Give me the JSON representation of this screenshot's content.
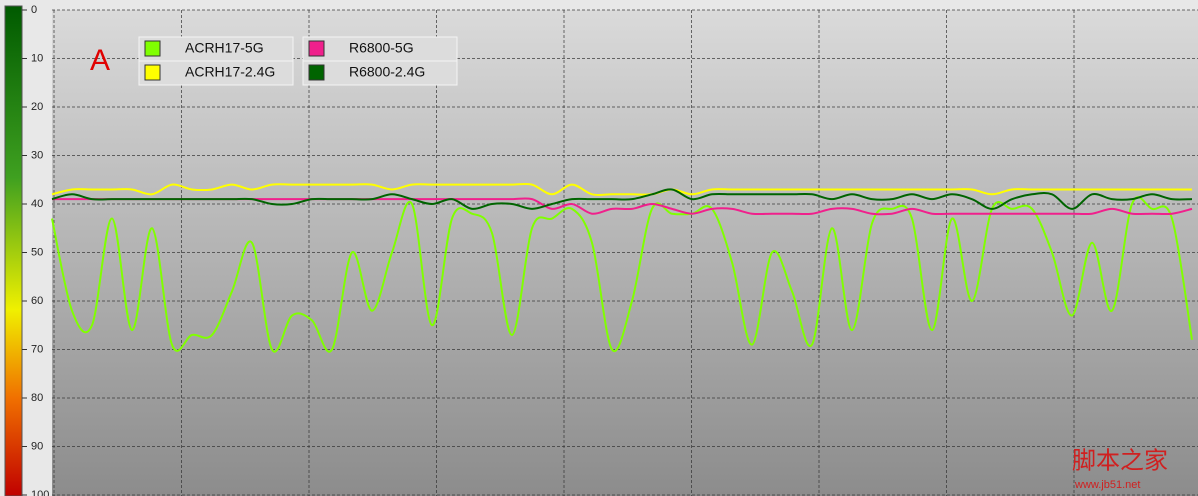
{
  "chart_data": {
    "type": "line",
    "annotation": "A",
    "watermark": [
      "脚本之家",
      "www.jb51.net"
    ],
    "ylim": [
      0,
      100
    ],
    "y_inverted": true,
    "yticks": [
      0,
      10,
      20,
      30,
      40,
      50,
      60,
      70,
      80,
      90,
      100
    ],
    "grid": true,
    "legend": "top-left",
    "categories": [
      null,
      null,
      null,
      null,
      null,
      null,
      null,
      null,
      null,
      null,
      null,
      null,
      null,
      null,
      null,
      null,
      null,
      null,
      null,
      null,
      null,
      null,
      null,
      null,
      null,
      null,
      null,
      null,
      null,
      null,
      null,
      null,
      null,
      null,
      null,
      null,
      null,
      null,
      null,
      null,
      null,
      null,
      null,
      null,
      null,
      null,
      null,
      null,
      null,
      null,
      null,
      null,
      null,
      null,
      null,
      null,
      null,
      null
    ],
    "series": [
      {
        "name": "ACRH17-5G",
        "color": "#80ff00",
        "values": [
          43,
          62,
          65,
          43,
          66,
          45,
          69,
          67,
          67,
          58,
          48,
          70,
          63,
          64,
          70,
          50,
          62,
          50,
          40,
          65,
          43,
          42,
          46,
          67,
          45,
          43,
          41,
          48,
          70,
          60,
          41,
          42,
          42,
          41,
          52,
          69,
          50,
          58,
          69,
          45,
          66,
          44,
          41,
          43,
          66,
          43,
          60,
          41,
          41,
          41,
          50,
          63,
          48,
          62,
          40,
          41,
          43,
          68
        ]
      },
      {
        "name": "ACRH17-2.4G",
        "color": "#ffff00",
        "values": [
          38,
          37,
          37,
          37,
          37,
          38,
          36,
          37,
          37,
          36,
          37,
          36,
          36,
          36,
          36,
          36,
          36,
          37,
          36,
          36,
          36,
          36,
          36,
          36,
          36,
          38,
          36,
          38,
          38,
          38,
          38,
          37,
          38,
          37,
          37,
          37,
          37,
          37,
          37,
          37,
          37,
          37,
          37,
          37,
          37,
          37,
          37,
          38,
          37,
          37,
          37,
          37,
          37,
          37,
          37,
          37,
          37,
          37
        ]
      },
      {
        "name": "R6800-5G",
        "color": "#f0208c",
        "values": [
          39,
          39,
          39,
          39,
          39,
          39,
          39,
          39,
          39,
          39,
          39,
          39,
          39,
          39,
          39,
          39,
          39,
          39,
          39,
          39,
          39,
          39,
          39,
          39,
          39,
          41,
          40,
          42,
          41,
          41,
          40,
          41,
          42,
          41,
          41,
          42,
          42,
          42,
          42,
          41,
          41,
          42,
          42,
          41,
          42,
          42,
          42,
          42,
          42,
          42,
          42,
          42,
          42,
          41,
          42,
          42,
          42,
          41
        ]
      },
      {
        "name": "R6800-2.4G",
        "color": "#006400",
        "values": [
          39,
          38,
          39,
          39,
          39,
          39,
          39,
          39,
          39,
          39,
          39,
          40,
          40,
          39,
          39,
          39,
          39,
          38,
          39,
          40,
          39,
          41,
          40,
          40,
          41,
          40,
          39,
          39,
          39,
          39,
          38,
          37,
          39,
          38,
          38,
          38,
          38,
          38,
          38,
          39,
          38,
          39,
          39,
          38,
          39,
          38,
          39,
          41,
          39,
          38,
          38,
          41,
          38,
          39,
          39,
          38,
          39,
          39
        ]
      }
    ]
  }
}
